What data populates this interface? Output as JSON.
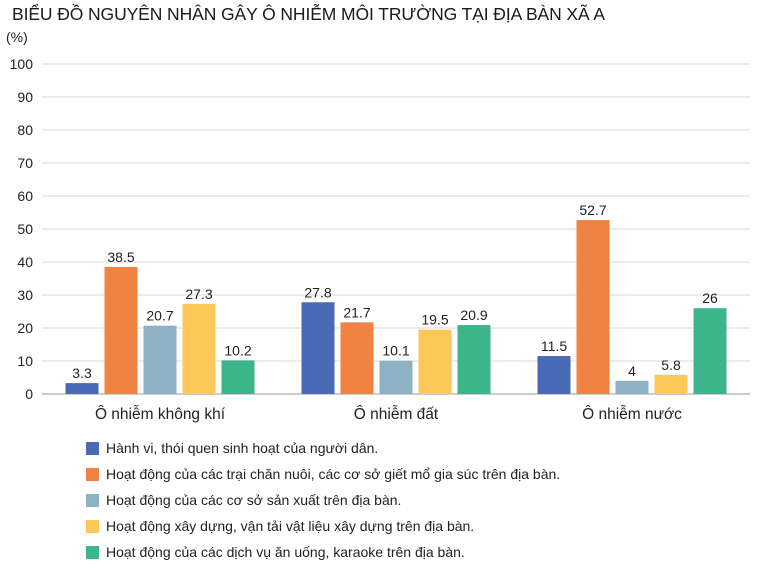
{
  "chart_data": {
    "type": "bar",
    "title": "BIỂU ĐỒ NGUYÊN NHÂN GÂY Ô NHIỄM MÔI TRƯỜNG TẠI ĐỊA BÀN XÃ A",
    "ylabel": "(%)",
    "xlabel": "",
    "ylim": [
      0,
      100
    ],
    "yticks": [
      0,
      10,
      20,
      30,
      40,
      50,
      60,
      70,
      80,
      90,
      100
    ],
    "grid": true,
    "legend_position": "bottom",
    "categories": [
      "Ô nhiễm không khí",
      "Ô nhiễm đất",
      "Ô nhiễm nước"
    ],
    "series": [
      {
        "name": "Hành vi, thói quen sinh hoạt của người dân.",
        "color": "#4a6ab5",
        "values": [
          3.3,
          27.8,
          11.5
        ],
        "labels": [
          "3.3",
          "27.8",
          "11.5"
        ]
      },
      {
        "name": "Hoạt động của các trại chăn nuôi, các cơ sở giết mổ gia súc trên địa bàn.",
        "color": "#f08243",
        "values": [
          38.5,
          21.7,
          52.7
        ],
        "labels": [
          "38.5",
          "21.7",
          "52.7"
        ]
      },
      {
        "name": "Hoạt động của các cơ sở sản xuất trên địa bàn.",
        "color": "#8fb1c4",
        "values": [
          20.7,
          10.1,
          4
        ],
        "labels": [
          "20.7",
          "10.1",
          "4"
        ]
      },
      {
        "name": "Hoạt động xây dựng, vận tải vật liệu xây dựng trên địa bàn.",
        "color": "#fcc85a",
        "values": [
          27.3,
          19.5,
          5.8
        ],
        "labels": [
          "27.3",
          "19.5",
          "5.8"
        ]
      },
      {
        "name": "Hoạt động của các dịch vụ ăn uống, karaoke trên địa bàn.",
        "color": "#3db58a",
        "values": [
          10.2,
          20.9,
          26
        ],
        "labels": [
          "10.2",
          "20.9",
          "26"
        ]
      }
    ]
  }
}
